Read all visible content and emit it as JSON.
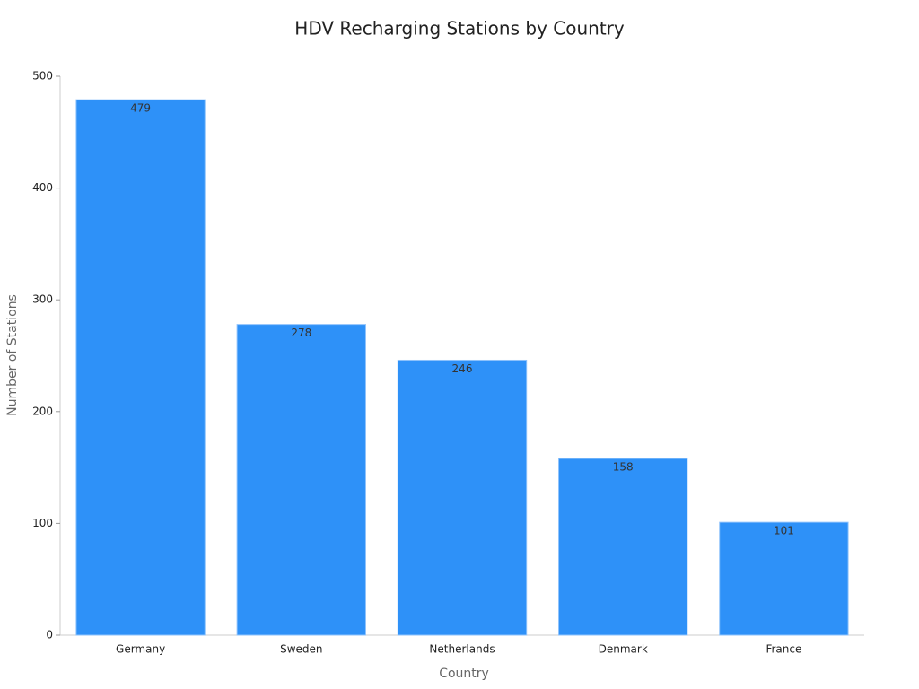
{
  "chart_data": {
    "type": "bar",
    "title": "HDV Recharging Stations by Country",
    "x_label": "Country",
    "y_label": "Number of Stations",
    "categories": [
      "Germany",
      "Sweden",
      "Netherlands",
      "Denmark",
      "France"
    ],
    "values": [
      479,
      278,
      246,
      158,
      101
    ],
    "color": "#2e91f8",
    "ylim": [
      0,
      500
    ],
    "yticks": [
      0,
      100,
      200,
      300,
      400,
      500
    ],
    "grid": false
  }
}
